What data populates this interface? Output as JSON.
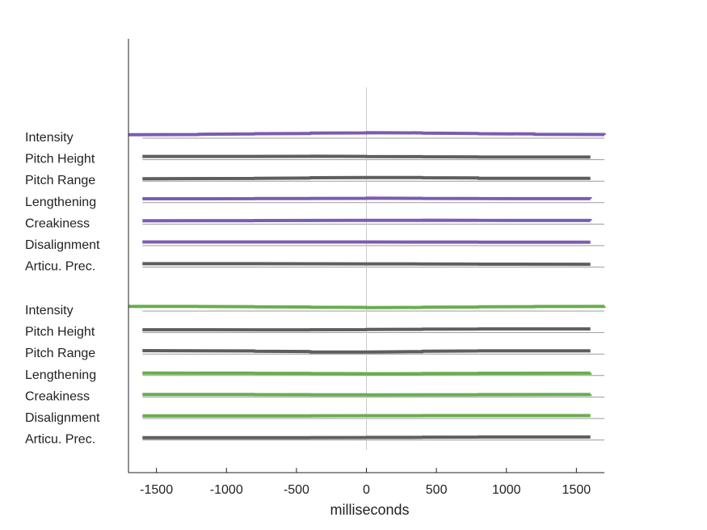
{
  "chart_data": {
    "type": "line",
    "xlabel": "milliseconds",
    "xlim": [
      -1700,
      1700
    ],
    "xticks": [
      -1500,
      -1000,
      -500,
      0,
      500,
      1000,
      1500
    ],
    "xtick_labels": [
      "-1500",
      "-1000",
      "-500",
      "0",
      "500",
      "1000",
      "1500"
    ],
    "zero_line": true,
    "colors": {
      "purple": "#7b5cb0",
      "green": "#6aad4e",
      "gray": "#5e5e5e",
      "baseline": "#9a9a9a",
      "zero": "#cccccc"
    },
    "groups": [
      {
        "rows": [
          {
            "label": "Intensity",
            "color": "purple",
            "x": [
              -1700,
              -1200,
              -800,
              -400,
              0,
              400,
              800,
              1200,
              1700
            ],
            "y": [
              0.12,
              0.18,
              0.25,
              0.32,
              0.38,
              0.32,
              0.25,
              0.18,
              0.12
            ]
          },
          {
            "label": "Pitch Height",
            "color": "gray",
            "x": [
              -1600,
              -800,
              -400,
              0,
              400,
              800,
              1600
            ],
            "y": [
              0.1,
              0.1,
              0.12,
              0.08,
              0.06,
              0.02,
              0.02
            ]
          },
          {
            "label": "Pitch Range",
            "color": "gray",
            "x": [
              -1600,
              -800,
              -400,
              0,
              400,
              800,
              1600
            ],
            "y": [
              0,
              0.05,
              0.12,
              0.15,
              0.12,
              0.05,
              0.05
            ]
          },
          {
            "label": "Lengthening",
            "color": "purple",
            "x": [
              -1600,
              -800,
              -400,
              0,
              400,
              800,
              1600
            ],
            "y": [
              0.18,
              0.2,
              0.22,
              0.25,
              0.22,
              0.2,
              0.18
            ]
          },
          {
            "label": "Creakiness",
            "color": "purple",
            "x": [
              -1600,
              -800,
              -400,
              0,
              400,
              800,
              1600
            ],
            "y": [
              0.12,
              0.14,
              0.15,
              0.16,
              0.18,
              0.16,
              0.14
            ]
          },
          {
            "label": "Disalignment",
            "color": "purple",
            "x": [
              -1600,
              -800,
              -400,
              0,
              400,
              800,
              1600
            ],
            "y": [
              0.15,
              0.15,
              0.15,
              0.15,
              0.14,
              0.13,
              0.12
            ]
          },
          {
            "label": "Articu. Prec.",
            "color": "gray",
            "x": [
              -1600,
              -800,
              -400,
              0,
              400,
              800,
              1600
            ],
            "y": [
              0.12,
              0.12,
              0.11,
              0.1,
              0.08,
              0.06,
              0.05
            ]
          }
        ]
      },
      {
        "rows": [
          {
            "label": "Intensity",
            "color": "green",
            "x": [
              -1700,
              -1200,
              -800,
              -400,
              0,
              400,
              800,
              1200,
              1700
            ],
            "y": [
              0.28,
              0.26,
              0.22,
              0.18,
              0.12,
              0.18,
              0.22,
              0.26,
              0.28
            ]
          },
          {
            "label": "Pitch Height",
            "color": "gray",
            "x": [
              -1600,
              -800,
              -400,
              0,
              400,
              800,
              1600
            ],
            "y": [
              0.05,
              0.03,
              0.05,
              0.08,
              0.12,
              0.15,
              0.15
            ]
          },
          {
            "label": "Pitch Range",
            "color": "gray",
            "x": [
              -1600,
              -800,
              -400,
              0,
              400,
              800,
              1600
            ],
            "y": [
              0.12,
              0.05,
              -0.05,
              -0.05,
              0.05,
              0.1,
              0.1
            ]
          },
          {
            "label": "Lengthening",
            "color": "green",
            "x": [
              -1600,
              -800,
              -400,
              0,
              400,
              800,
              1600
            ],
            "y": [
              0,
              -0.02,
              -0.05,
              -0.08,
              -0.05,
              -0.02,
              0
            ]
          },
          {
            "label": "Creakiness",
            "color": "green",
            "x": [
              -1600,
              -800,
              -400,
              0,
              400,
              800,
              1600
            ],
            "y": [
              0.02,
              0,
              -0.02,
              -0.03,
              -0.02,
              0,
              0.02
            ]
          },
          {
            "label": "Disalignment",
            "color": "green",
            "x": [
              -1600,
              -800,
              -400,
              0,
              400,
              800,
              1600
            ],
            "y": [
              0.02,
              0.03,
              0.04,
              0.05,
              0.06,
              0.06,
              0.06
            ]
          },
          {
            "label": "Articu. Prec.",
            "color": "gray",
            "x": [
              -1600,
              -800,
              -400,
              0,
              400,
              800,
              1600
            ],
            "y": [
              -0.02,
              -0.01,
              0,
              0.02,
              0.05,
              0.07,
              0.07
            ]
          }
        ]
      }
    ]
  }
}
